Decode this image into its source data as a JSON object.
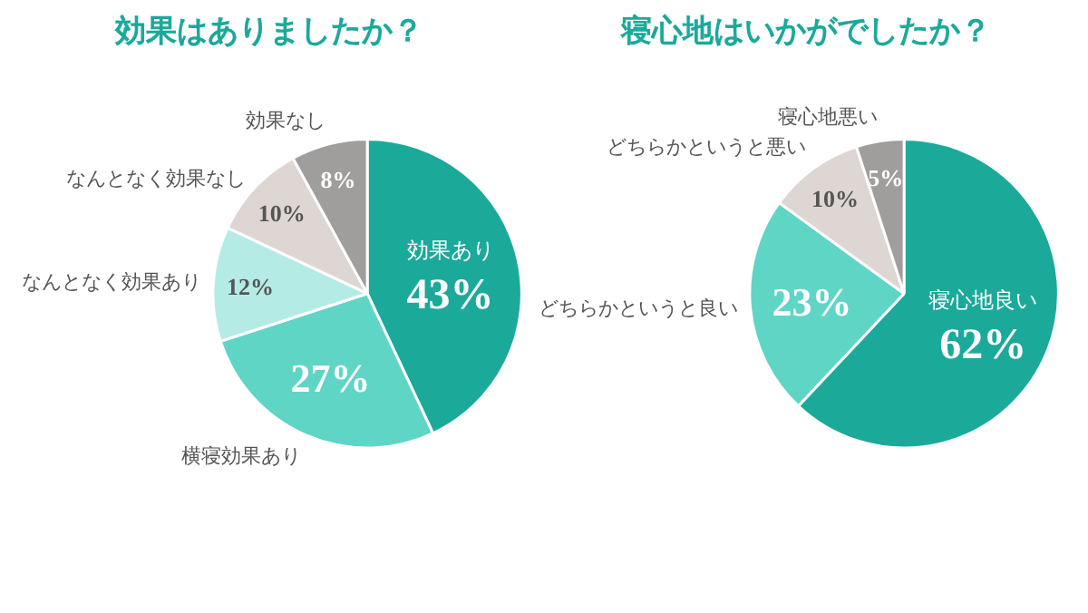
{
  "chart_data": [
    {
      "type": "pie",
      "title": "効果はありましたか？",
      "categories": [
        "効果あり",
        "横寝効果あり",
        "なんとなく効果あり",
        "なんとなく効果なし",
        "効果なし"
      ],
      "values": [
        43,
        27,
        12,
        10,
        8
      ],
      "value_labels": [
        "43%",
        "27%",
        "12%",
        "10%",
        "8%"
      ],
      "colors": [
        "#1ba99a",
        "#5fd5c6",
        "#b5ebe5",
        "#ddd6d3",
        "#a09e9d"
      ]
    },
    {
      "type": "pie",
      "title": "寝心地はいかがでしたか？",
      "categories": [
        "寝心地良い",
        "どちらかというと良い",
        "どちらかというと悪い",
        "寝心地悪い"
      ],
      "values": [
        62,
        23,
        10,
        5
      ],
      "value_labels": [
        "62%",
        "23%",
        "10%",
        "5%"
      ],
      "colors": [
        "#1ba99a",
        "#5fd5c6",
        "#ddd6d3",
        "#a09e9d"
      ]
    }
  ]
}
